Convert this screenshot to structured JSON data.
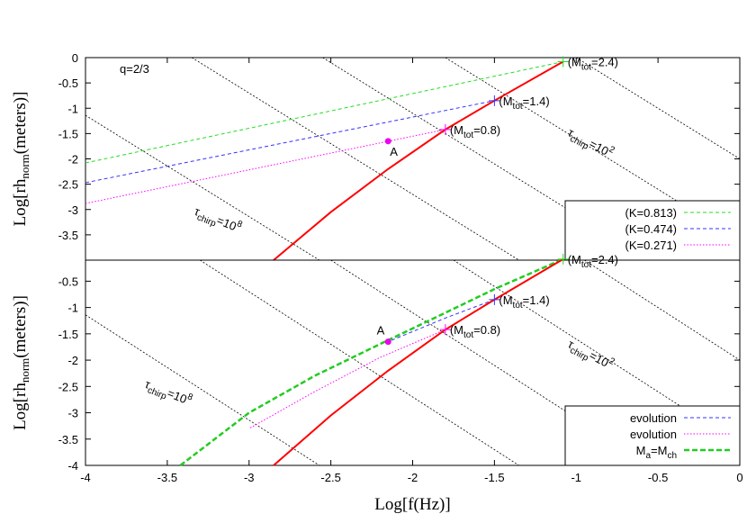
{
  "chart_data": [
    {
      "type": "line",
      "ylabel_parts": [
        "Log[rh",
        "norm",
        "(meters)]"
      ],
      "annotation_text": "q=2/3",
      "xlim": [
        -4,
        0
      ],
      "ylim": [
        -4,
        0
      ],
      "yticks": [
        0,
        -0.5,
        -1,
        -1.5,
        -2,
        -2.5,
        -3,
        -3.5
      ],
      "legend": "lower right",
      "series": [
        {
          "name": "(K=0.813)",
          "color": "#22dd22",
          "style": "dashed",
          "x": [
            -4,
            -1.08
          ],
          "y": [
            -2.08,
            -0.08
          ]
        },
        {
          "name": "(K=0.474)",
          "color": "#3333ff",
          "style": "dashed",
          "x": [
            -4,
            -1.5
          ],
          "y": [
            -2.47,
            -0.85
          ]
        },
        {
          "name": "(K=0.271)",
          "color": "#ff00ff",
          "style": "dotted",
          "x": [
            -4,
            -1.8
          ],
          "y": [
            -2.88,
            -1.42
          ]
        },
        {
          "color": "#ff0000",
          "style": "solid",
          "x": [
            -2.85,
            -2.5,
            -2.15,
            -1.8,
            -1.5,
            -1.08
          ],
          "y": [
            -4,
            -3.05,
            -2.2,
            -1.42,
            -0.85,
            -0.08
          ]
        }
      ],
      "reference_lines": {
        "color": "#000000",
        "lines": [
          {
            "x": [
              -4,
              -2.57
            ],
            "y": [
              -1.14,
              -4
            ]
          },
          {
            "x": [
              -3.35,
              -1.35
            ],
            "y": [
              0,
              -4
            ]
          },
          {
            "x": [
              -2.55,
              -0.55
            ],
            "y": [
              0,
              -4
            ]
          },
          {
            "x": [
              -1.8,
              0
            ],
            "y": [
              0,
              -3.6
            ]
          },
          {
            "x": [
              -1.0,
              0
            ],
            "y": [
              0,
              -2
            ]
          }
        ]
      },
      "points": [
        {
          "label": "A",
          "x": -2.15,
          "y": -1.65,
          "color": "#ee00ee"
        }
      ],
      "mass_marks": [
        {
          "x": -1.08,
          "y": -0.08,
          "color": "#22dd22",
          "parts": [
            "(M",
            "tot",
            "=2.4)"
          ]
        },
        {
          "x": -1.5,
          "y": -0.85,
          "color": "#3333ff",
          "parts": [
            "(M",
            "tot",
            "=1.4)"
          ]
        },
        {
          "x": -1.8,
          "y": -1.42,
          "color": "#ff00ff",
          "parts": [
            "(M",
            "tot",
            "=0.8)"
          ]
        }
      ],
      "tau_labels": [
        {
          "parts": [
            "τ",
            "chirp",
            "=10",
            "8"
          ]
        },
        {
          "parts": [
            "τ",
            "chirp",
            "=10",
            "2"
          ]
        }
      ]
    },
    {
      "type": "line",
      "ylabel_parts": [
        "Log[rh",
        "norm",
        "(meters)]"
      ],
      "xlabel": "Log[f(Hz)]",
      "xlim": [
        -4,
        0
      ],
      "ylim": [
        -4,
        -0.1
      ],
      "xticks": [
        -4,
        -3.5,
        -3,
        -2.5,
        -2,
        -1.5,
        -1,
        -0.5,
        0
      ],
      "yticks": [
        -0.5,
        -1,
        -1.5,
        -2,
        -2.5,
        -3,
        -3.5,
        -4
      ],
      "legend": "lower right",
      "series": [
        {
          "name": "evolution",
          "color": "#3333ff",
          "style": "dashed",
          "x": [
            -1.5,
            -1.8,
            -2.15
          ],
          "y": [
            -0.85,
            -1.2,
            -1.65
          ]
        },
        {
          "name": "evolution",
          "color": "#ff00ff",
          "style": "dotted",
          "x": [
            -1.8,
            -2.2,
            -2.6,
            -3.0
          ],
          "y": [
            -1.42,
            -1.95,
            -2.6,
            -3.3
          ]
        },
        {
          "name": "M_a=M_ch",
          "legend_parts": [
            "M",
            "a",
            "=M",
            "ch"
          ],
          "color": "#22cc22",
          "style": "thick",
          "x": [
            -3.42,
            -3.0,
            -2.6,
            -2.15,
            -1.8,
            -1.5,
            -1.08
          ],
          "y": [
            -4,
            -3.0,
            -2.3,
            -1.62,
            -1.1,
            -0.65,
            -0.08
          ]
        },
        {
          "color": "#ff0000",
          "style": "solid",
          "x": [
            -2.85,
            -2.5,
            -2.15,
            -1.8,
            -1.5,
            -1.08
          ],
          "y": [
            -4,
            -3.05,
            -2.2,
            -1.42,
            -0.85,
            -0.08
          ]
        }
      ],
      "reference_lines": {
        "color": "#000000",
        "lines": [
          {
            "x": [
              -4,
              -2.57
            ],
            "y": [
              -1.14,
              -4
            ]
          },
          {
            "x": [
              -3.3,
              -1.35
            ],
            "y": [
              -0.1,
              -4
            ]
          },
          {
            "x": [
              -2.5,
              -0.55
            ],
            "y": [
              -0.1,
              -4
            ]
          },
          {
            "x": [
              -1.75,
              0
            ],
            "y": [
              -0.1,
              -3.6
            ]
          },
          {
            "x": [
              -0.95,
              0
            ],
            "y": [
              -0.1,
              -2
            ]
          }
        ]
      },
      "points": [
        {
          "label": "A",
          "x": -2.15,
          "y": -1.65,
          "color": "#ee00ee"
        }
      ],
      "mass_marks": [
        {
          "x": -1.08,
          "y": -0.08,
          "color": "#22dd22",
          "parts": [
            "(M",
            "tot",
            "=2.4)"
          ]
        },
        {
          "x": -1.5,
          "y": -0.85,
          "color": "#3333ff",
          "parts": [
            "(M",
            "tot",
            "=1.4)"
          ]
        },
        {
          "x": -1.8,
          "y": -1.42,
          "color": "#ff00ff",
          "parts": [
            "(M",
            "tot",
            "=0.8)"
          ]
        }
      ],
      "tau_labels": [
        {
          "parts": [
            "τ",
            "chirp",
            "=10",
            "8"
          ]
        },
        {
          "parts": [
            "τ",
            "chirp",
            "=10",
            "2"
          ]
        }
      ]
    }
  ]
}
